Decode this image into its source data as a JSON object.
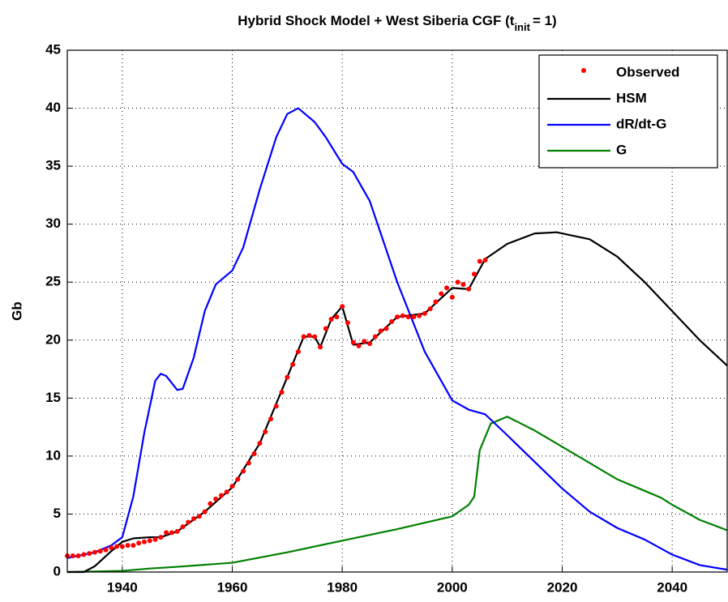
{
  "chart_data": {
    "type": "line",
    "title": {
      "main": "Hybrid Shock Model + West Siberia CGF (t",
      "subscript": "init",
      "tail": "= 1)"
    },
    "ylabel": "Gb",
    "xlim": [
      1930,
      2050
    ],
    "xticks": [
      1940,
      1960,
      1980,
      2000,
      2020,
      2040
    ],
    "ylim": [
      0,
      45
    ],
    "yticks": [
      0,
      5,
      10,
      15,
      20,
      25,
      30,
      35,
      40,
      45
    ],
    "grid": true,
    "legend": "upper right",
    "series": [
      {
        "name": "Observed",
        "color": "#ff0000",
        "marker": "dot",
        "x": [
          1930,
          1931,
          1932,
          1933,
          1934,
          1935,
          1936,
          1937,
          1938,
          1939,
          1940,
          1941,
          1942,
          1943,
          1944,
          1945,
          1946,
          1947,
          1948,
          1949,
          1950,
          1951,
          1952,
          1953,
          1954,
          1955,
          1956,
          1957,
          1958,
          1959,
          1960,
          1961,
          1962,
          1963,
          1964,
          1965,
          1966,
          1967,
          1968,
          1969,
          1970,
          1971,
          1972,
          1973,
          1974,
          1975,
          1976,
          1977,
          1978,
          1979,
          1980,
          1981,
          1982,
          1983,
          1984,
          1985,
          1986,
          1987,
          1988,
          1989,
          1990,
          1991,
          1992,
          1993,
          1994,
          1995,
          1996,
          1997,
          1998,
          1999,
          2000,
          2001,
          2002,
          2003,
          2004,
          2005,
          2006
        ],
        "values": [
          1.4,
          1.4,
          1.4,
          1.5,
          1.6,
          1.7,
          1.8,
          1.9,
          2.1,
          2.2,
          2.2,
          2.3,
          2.3,
          2.5,
          2.6,
          2.7,
          2.8,
          3.0,
          3.4,
          3.4,
          3.5,
          3.9,
          4.3,
          4.6,
          4.8,
          5.2,
          5.9,
          6.3,
          6.6,
          6.9,
          7.4,
          8.0,
          8.7,
          9.4,
          10.2,
          11.1,
          12.1,
          13.2,
          14.3,
          15.5,
          16.8,
          17.9,
          19.0,
          20.3,
          20.4,
          20.3,
          19.4,
          21.0,
          21.8,
          22.0,
          22.9,
          21.5,
          19.8,
          19.5,
          19.9,
          19.7,
          20.3,
          20.8,
          21.0,
          21.6,
          22.0,
          22.1,
          22.0,
          22.0,
          22.1,
          22.3,
          22.7,
          23.3,
          24.0,
          24.5,
          23.7,
          25.0,
          24.8,
          24.4,
          25.7,
          26.8,
          26.9
        ]
      },
      {
        "name": "HSM",
        "color": "#000000",
        "marker": "line",
        "x": [
          1930,
          1933,
          1935,
          1938,
          1940,
          1942,
          1945,
          1947,
          1950,
          1955,
          1960,
          1965,
          1970,
          1973,
          1975,
          1976,
          1978,
          1980,
          1982,
          1985,
          1990,
          1995,
          2000,
          2003,
          2006,
          2010,
          2015,
          2019,
          2025,
          2030,
          2035,
          2040,
          2045,
          2050
        ],
        "values": [
          0,
          0,
          0.5,
          1.8,
          2.6,
          2.9,
          3.0,
          3.0,
          3.5,
          5.2,
          7.3,
          11.1,
          16.8,
          20.3,
          20.3,
          19.4,
          21.8,
          22.9,
          19.6,
          19.8,
          22.0,
          22.3,
          24.5,
          24.4,
          27.0,
          28.3,
          29.2,
          29.3,
          28.7,
          27.2,
          25.0,
          22.5,
          20.0,
          17.8
        ]
      },
      {
        "name": "dR/dt-G",
        "color": "#0000ff",
        "marker": "line",
        "x": [
          1930,
          1935,
          1938,
          1940,
          1942,
          1944,
          1946,
          1947,
          1948,
          1950,
          1951,
          1953,
          1955,
          1957,
          1960,
          1962,
          1965,
          1968,
          1970,
          1972,
          1975,
          1977,
          1980,
          1982,
          1985,
          1990,
          1995,
          2000,
          2003,
          2006,
          2010,
          2015,
          2020,
          2025,
          2030,
          2035,
          2040,
          2045,
          2050
        ],
        "values": [
          1.2,
          1.7,
          2.3,
          3.0,
          6.5,
          12,
          16.5,
          17.1,
          16.9,
          15.7,
          15.8,
          18.5,
          22.5,
          24.8,
          26,
          28,
          33,
          37.5,
          39.5,
          40,
          38.8,
          37.5,
          35.2,
          34.5,
          32,
          25,
          19,
          14.8,
          14,
          13.6,
          11.8,
          9.5,
          7.2,
          5.2,
          3.8,
          2.8,
          1.5,
          0.6,
          0.2
        ]
      },
      {
        "name": "G",
        "color": "#008000",
        "marker": "line",
        "x": [
          1930,
          1940,
          1945,
          1950,
          1960,
          1970,
          1980,
          1990,
          2000,
          2003,
          2004,
          2005,
          2007,
          2010,
          2015,
          2020,
          2025,
          2030,
          2035,
          2038,
          2040,
          2045,
          2050
        ],
        "values": [
          0,
          0.1,
          0.3,
          0.45,
          0.8,
          1.7,
          2.7,
          3.7,
          4.8,
          5.8,
          6.5,
          10.5,
          12.8,
          13.4,
          12.2,
          10.8,
          9.4,
          8.0,
          7.0,
          6.4,
          5.8,
          4.5,
          3.6
        ]
      }
    ]
  }
}
